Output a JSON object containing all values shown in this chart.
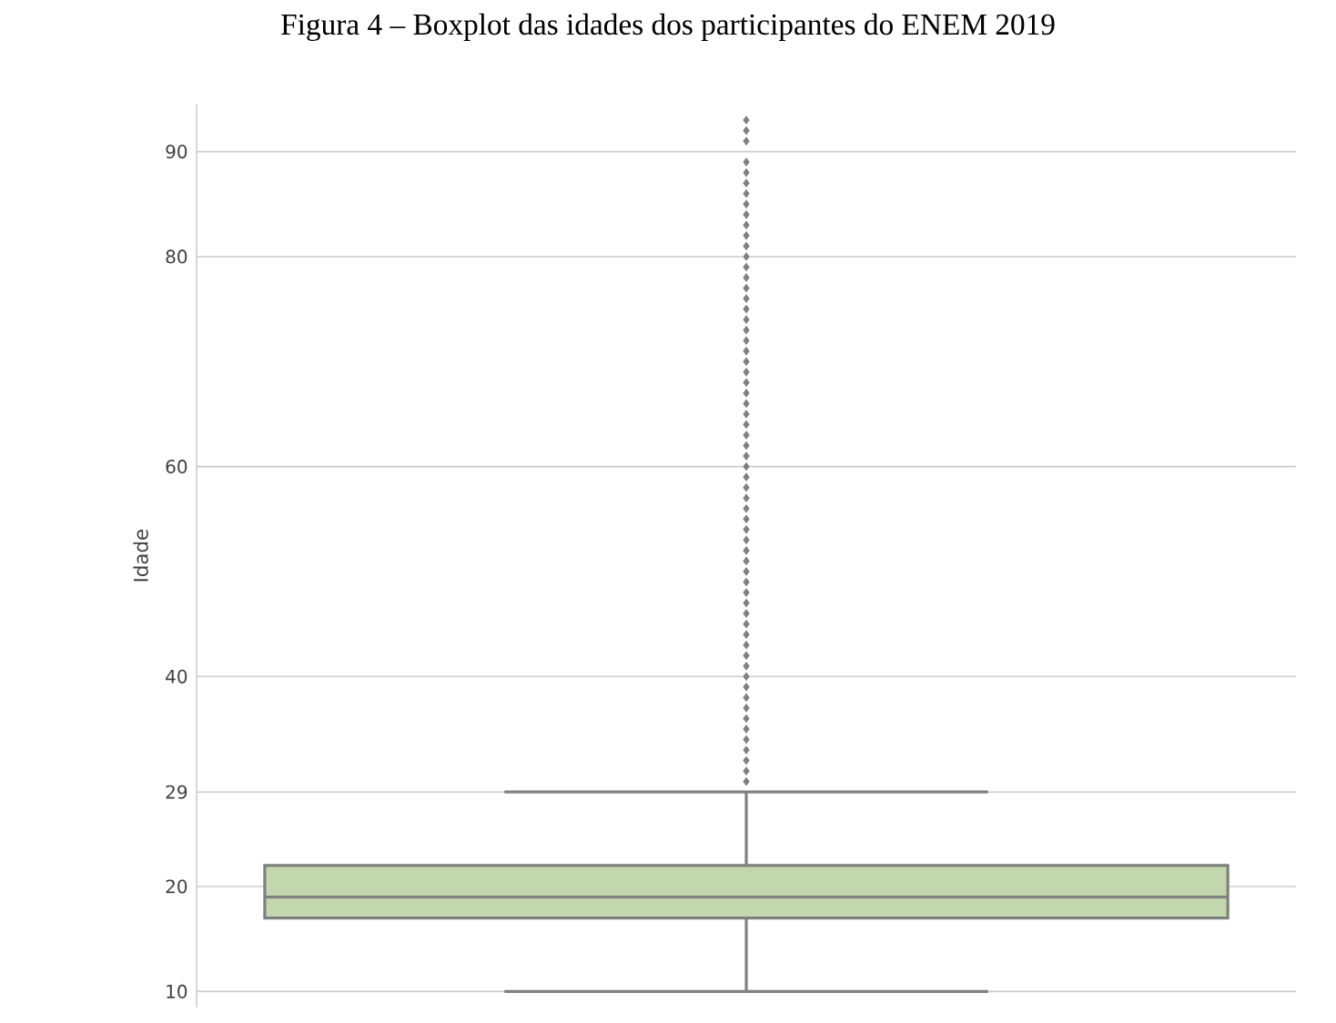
{
  "chart_data": {
    "type": "box",
    "title": "Figura 4 – Boxplot das idades dos participantes do ENEM 2019",
    "ylabel": "Idade",
    "categories": [
      null
    ],
    "color": "#c3d7ae",
    "boxes": [
      {
        "low": 10,
        "q1": 17,
        "median": 19,
        "q3": 22,
        "high": 29,
        "outliers": [
          30,
          31,
          32,
          33,
          34,
          35,
          36,
          37,
          38,
          39,
          40,
          41,
          42,
          43,
          44,
          45,
          46,
          47,
          48,
          49,
          50,
          51,
          52,
          53,
          54,
          55,
          56,
          57,
          58,
          59,
          60,
          61,
          62,
          63,
          64,
          65,
          66,
          67,
          68,
          69,
          70,
          71,
          72,
          73,
          74,
          75,
          76,
          77,
          78,
          79,
          80,
          81,
          82,
          83,
          84,
          85,
          86,
          87,
          88,
          89,
          91,
          92,
          93
        ]
      }
    ],
    "ylim": [
      8.5,
      94.5
    ],
    "yticks": [
      10,
      20,
      29,
      40,
      60,
      80,
      90
    ],
    "grid": "y",
    "tick_labels": "y"
  }
}
